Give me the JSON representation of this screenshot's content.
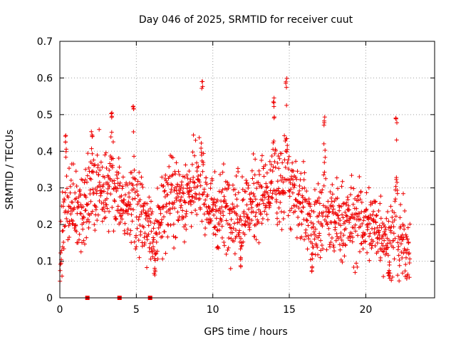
{
  "chart_data": {
    "type": "scatter",
    "title": "Day 046 of 2025, SRMTID for receiver cuut",
    "xlabel": "GPS time / hours",
    "ylabel": "SRMTID / TECUs",
    "xlim": [
      0,
      24.5
    ],
    "ylim": [
      0,
      0.7
    ],
    "x_ticks": [
      0,
      5,
      10,
      15,
      20
    ],
    "x_tick_labels": [
      "0",
      "5",
      "10",
      "15",
      "20"
    ],
    "y_ticks": [
      0,
      0.1,
      0.2,
      0.3,
      0.4,
      0.5,
      0.6,
      0.7
    ],
    "y_tick_labels": [
      "0",
      "0.1",
      "0.2",
      "0.3",
      "0.4",
      "0.5",
      "0.6",
      "0.7"
    ],
    "grid": true,
    "marker": "plus",
    "color": "#ee0000",
    "time_range_hours": [
      0,
      22.9
    ],
    "trend": [
      {
        "x": 0.0,
        "y": 0.12
      },
      {
        "x": 0.5,
        "y": 0.23
      },
      {
        "x": 1.0,
        "y": 0.28
      },
      {
        "x": 1.5,
        "y": 0.22
      },
      {
        "x": 2.0,
        "y": 0.28
      },
      {
        "x": 2.5,
        "y": 0.3
      },
      {
        "x": 3.0,
        "y": 0.28
      },
      {
        "x": 3.5,
        "y": 0.3
      },
      {
        "x": 4.0,
        "y": 0.28
      },
      {
        "x": 4.5,
        "y": 0.25
      },
      {
        "x": 5.0,
        "y": 0.22
      },
      {
        "x": 5.5,
        "y": 0.21
      },
      {
        "x": 6.0,
        "y": 0.17
      },
      {
        "x": 6.5,
        "y": 0.22
      },
      {
        "x": 7.0,
        "y": 0.27
      },
      {
        "x": 8.0,
        "y": 0.28
      },
      {
        "x": 9.0,
        "y": 0.3
      },
      {
        "x": 10.0,
        "y": 0.23
      },
      {
        "x": 11.0,
        "y": 0.25
      },
      {
        "x": 12.0,
        "y": 0.23
      },
      {
        "x": 13.0,
        "y": 0.28
      },
      {
        "x": 14.0,
        "y": 0.27
      },
      {
        "x": 15.0,
        "y": 0.3
      },
      {
        "x": 16.0,
        "y": 0.24
      },
      {
        "x": 17.0,
        "y": 0.2
      },
      {
        "x": 18.0,
        "y": 0.21
      },
      {
        "x": 19.0,
        "y": 0.21
      },
      {
        "x": 20.0,
        "y": 0.2
      },
      {
        "x": 21.0,
        "y": 0.19
      },
      {
        "x": 22.0,
        "y": 0.14
      },
      {
        "x": 22.9,
        "y": 0.15
      }
    ],
    "spikes": [
      {
        "x": 0.4,
        "y": 0.45
      },
      {
        "x": 2.1,
        "y": 0.46
      },
      {
        "x": 3.4,
        "y": 0.52
      },
      {
        "x": 4.8,
        "y": 0.54
      },
      {
        "x": 9.3,
        "y": 0.6
      },
      {
        "x": 14.0,
        "y": 0.55
      },
      {
        "x": 14.8,
        "y": 0.6
      },
      {
        "x": 17.3,
        "y": 0.5
      },
      {
        "x": 22.0,
        "y": 0.5
      },
      {
        "x": 6.2,
        "y": 0.06
      },
      {
        "x": 11.8,
        "y": 0.08
      },
      {
        "x": 16.5,
        "y": 0.06
      },
      {
        "x": 21.5,
        "y": 0.06
      }
    ],
    "zero_markers_x": [
      1.8,
      3.9,
      5.9
    ]
  }
}
